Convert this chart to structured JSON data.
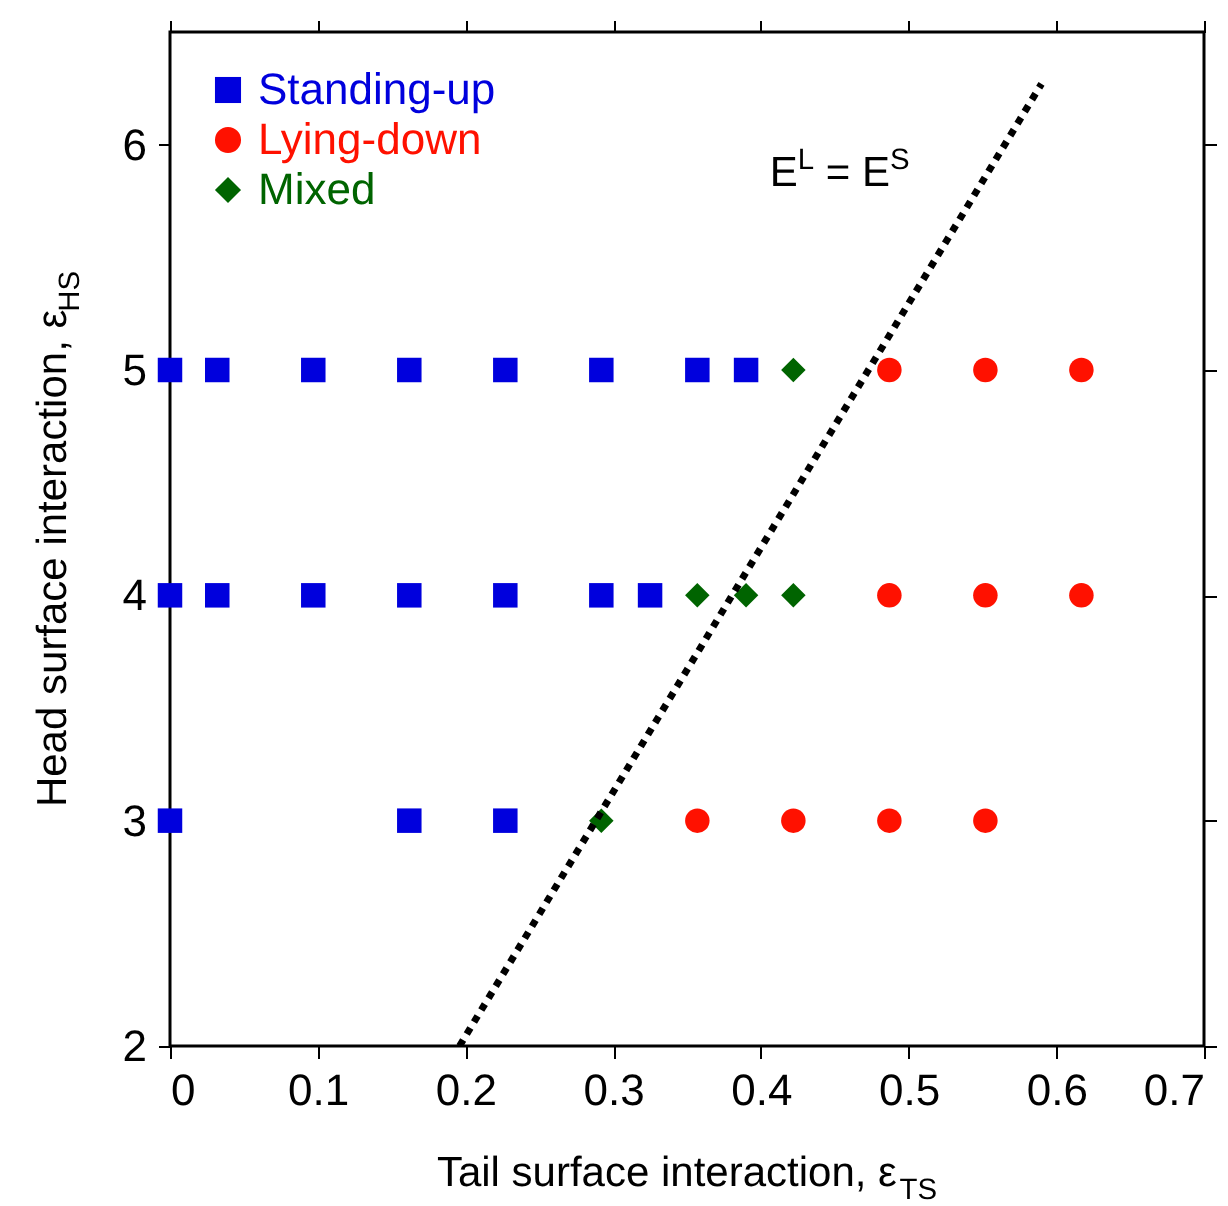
{
  "chart_data": {
    "type": "scatter",
    "xlabel": "Tail surface interaction, ε$_{TS}$",
    "ylabel": "Head surface interaction, ε$_{HS}$",
    "xlim": [
      0,
      0.7
    ],
    "xticks": [
      0,
      0.1,
      0.2,
      0.3,
      0.4,
      0.5,
      0.6,
      0.7
    ],
    "ylim": [
      2,
      6.5
    ],
    "yticks": [
      2,
      3,
      4,
      5,
      6
    ],
    "legend": "top left",
    "series": [
      {
        "name": "Standing-up",
        "color": "#0000dd",
        "marker": "square",
        "x": [
          0,
          0.032,
          0.097,
          0.162,
          0.227,
          0.292,
          0.357,
          0.39,
          0,
          0.032,
          0.097,
          0.162,
          0.227,
          0.292,
          0.325,
          0,
          0.162,
          0.227
        ],
        "values": [
          5,
          5,
          5,
          5,
          5,
          5,
          5,
          5,
          4,
          4,
          4,
          4,
          4,
          4,
          4,
          3,
          3,
          3
        ]
      },
      {
        "name": "Lying-down",
        "color": "#ff1100",
        "marker": "circle",
        "x": [
          0.487,
          0.552,
          0.617,
          0.487,
          0.552,
          0.617,
          0.357,
          0.422,
          0.487,
          0.552
        ],
        "values": [
          5,
          5,
          5,
          4,
          4,
          4,
          3,
          3,
          3,
          3
        ]
      },
      {
        "name": "Mixed",
        "color": "#006400",
        "marker": "diamond",
        "x": [
          0.422,
          0.357,
          0.39,
          0.422,
          0.292
        ],
        "values": [
          5,
          4,
          4,
          4,
          3
        ]
      },
      {
        "type": "line",
        "color": "#000000",
        "line_style": "dotted",
        "marker": "none",
        "x": [
          0.196,
          0.59
        ],
        "values": [
          2.0,
          6.27
        ]
      }
    ],
    "annotations": [
      "E$^{L}$ = E$^{S}$"
    ]
  }
}
